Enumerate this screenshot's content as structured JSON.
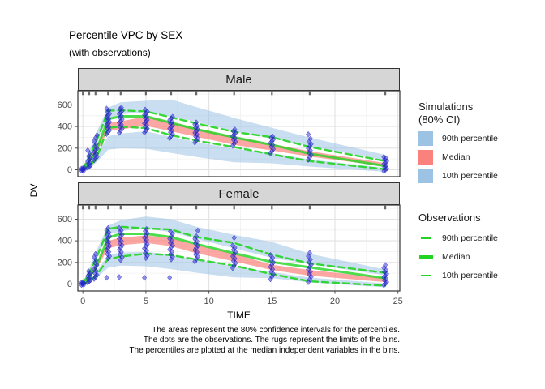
{
  "title": "Percentile VPC by SEX",
  "subtitle": "(with observations)",
  "caption_lines": [
    "The areas represent the 80% confidence intervals for the percentiles.",
    "The dots are the observations. The rugs represent the limits of the bins.",
    "The percentiles are plotted at the median independent variables in the bins."
  ],
  "axes": {
    "x_label": "TIME",
    "y_label": "DV"
  },
  "legend": {
    "simulations": {
      "title_line1": "Simulations",
      "title_line2": "(80% CI)",
      "items": [
        {
          "label": "90th percentile",
          "color": "#9dc3e4"
        },
        {
          "label": "Median",
          "color": "#fb817c"
        },
        {
          "label": "10th percentile",
          "color": "#9dc3e4"
        }
      ]
    },
    "observations": {
      "title": "Observations",
      "color": "#22d422",
      "items": [
        {
          "label": "90th percentile",
          "style": "dashed"
        },
        {
          "label": "Median",
          "style": "solid"
        },
        {
          "label": "10th percentile",
          "style": "dashed"
        }
      ]
    }
  },
  "colors": {
    "sim_ci_blue": "#9dc3e4",
    "sim_ci_red": "#fb817c",
    "obs_green": "#22d422",
    "points_blue": "#2323cc",
    "strip_bg": "#d6d6d6",
    "grid_major": "#e2e2e2",
    "grid_minor": "#f0f0f0",
    "panel_border": "#333333",
    "axis_text": "#4d4d4d",
    "rug": "#454545"
  },
  "chart_data": {
    "type": "area",
    "title": "Percentile VPC by SEX",
    "xlabel": "TIME",
    "ylabel": "DV",
    "x_ticks": [
      0,
      5,
      10,
      15,
      20,
      25
    ],
    "y_ticks": [
      0,
      200,
      400,
      600
    ],
    "x_minor": [
      2.5,
      7.5,
      12.5,
      17.5,
      22.5
    ],
    "y_minor": [
      100,
      300,
      500,
      700
    ],
    "xlim": [
      -0.4,
      25.15
    ],
    "ylim": [
      -64,
      731
    ],
    "legend_position": "right",
    "grid": true,
    "bin_times": [
      0,
      0.5,
      1,
      2,
      3,
      5,
      7,
      9,
      12,
      15,
      18,
      24
    ],
    "facets": [
      {
        "name": "Male",
        "sim_p90_ci": {
          "hi": [
            15,
            170,
            330,
            575,
            625,
            638,
            650,
            580,
            480,
            388,
            298,
            138
          ],
          "lo": [
            5,
            120,
            250,
            474,
            511,
            536,
            493,
            444,
            356,
            290,
            218,
            88
          ]
        },
        "sim_median_ci": {
          "hi": [
            8,
            100,
            200,
            437,
            449,
            493,
            444,
            381,
            306,
            238,
            172,
            62
          ],
          "lo": [
            2,
            70,
            150,
            362,
            374,
            406,
            356,
            306,
            231,
            178,
            122,
            32
          ]
        },
        "sim_p10_ci": {
          "hi": [
            2,
            55,
            120,
            311,
            336,
            356,
            306,
            256,
            194,
            155,
            96,
            18
          ],
          "lo": [
            0,
            25,
            60,
            186,
            199,
            194,
            156,
            118,
            69,
            60,
            30,
            -19
          ]
        },
        "obs_p90": [
          5,
          120,
          240,
          547,
          550,
          540,
          485,
          430,
          350,
          301,
          211,
          80
        ],
        "obs_median": [
          0,
          75,
          160,
          470,
          495,
          495,
          435,
          375,
          300,
          231,
          148,
          34
        ],
        "obs_p10": [
          0,
          35,
          90,
          388,
          398,
          385,
          320,
          270,
          210,
          142,
          80,
          4
        ],
        "points": [
          {
            "t": 0,
            "values": [
              -8,
              -3,
              0,
              3,
              6,
              10,
              14,
              18
            ]
          },
          {
            "t": 0.5,
            "values": [
              18,
              30,
              42,
              55,
              66,
              78,
              92,
              108,
              126,
              150,
              180
            ]
          },
          {
            "t": 1,
            "values": [
              88,
              105,
              120,
              135,
              150,
              165,
              180,
              198,
              218,
              240,
              265,
              295,
              320
            ]
          },
          {
            "t": 2,
            "values": [
              332,
              350,
              366,
              382,
              397,
              412,
              427,
              442,
              457,
              472,
              487,
              502,
              518,
              534,
              550,
              566
            ]
          },
          {
            "t": 3,
            "values": [
              342,
              362,
              381,
              399,
              417,
              434,
              450,
              466,
              482,
              498,
              514,
              530,
              546,
              562,
              576
            ]
          },
          {
            "t": 5,
            "values": [
              345,
              363,
              381,
              398,
              414,
              430,
              446,
              462,
              477,
              492,
              507,
              522,
              538,
              556
            ]
          },
          {
            "t": 7,
            "values": [
              292,
              312,
              330,
              348,
              364,
              380,
              396,
              412,
              428,
              444,
              460,
              476,
              490
            ]
          },
          {
            "t": 9,
            "values": [
              252,
              272,
              291,
              309,
              326,
              342,
              358,
              374,
              390,
              406,
              422,
              438
            ]
          },
          {
            "t": 12,
            "values": [
              222,
              242,
              260,
              277,
              294,
              310,
              326,
              342,
              358,
              372
            ]
          },
          {
            "t": 15,
            "values": [
              152,
              172,
              192,
              212,
              230,
              247,
              264,
              280,
              296,
              308
            ]
          },
          {
            "t": 18,
            "values": [
              92,
              115,
              137,
              158,
              178,
              198,
              218,
              238,
              258,
              288,
              328
            ]
          },
          {
            "t": 24,
            "values": [
              -12,
              0,
              12,
              25,
              38,
              52,
              66,
              80,
              94,
              106,
              118
            ]
          }
        ]
      },
      {
        "name": "Female",
        "sim_p90_ci": {
          "hi": [
            15,
            140,
            290,
            540,
            590,
            625,
            600,
            530,
            455,
            390,
            280,
            135
          ],
          "lo": [
            5,
            100,
            220,
            455,
            490,
            515,
            480,
            420,
            330,
            242,
            185,
            80
          ]
        },
        "sim_median_ci": {
          "hi": [
            8,
            85,
            175,
            400,
            430,
            450,
            425,
            360,
            280,
            178,
            130,
            55
          ],
          "lo": [
            2,
            55,
            125,
            330,
            360,
            380,
            350,
            285,
            210,
            129,
            78,
            18
          ]
        },
        "sim_p10_ci": {
          "hi": [
            2,
            45,
            100,
            270,
            290,
            300,
            272,
            225,
            165,
            110,
            60,
            5
          ],
          "lo": [
            0,
            20,
            50,
            150,
            170,
            165,
            138,
            105,
            62,
            54,
            15,
            -30
          ]
        },
        "obs_p90": [
          5,
          100,
          220,
          510,
          530,
          515,
          505,
          435,
          380,
          271,
          191,
          104
        ],
        "obs_median": [
          0,
          65,
          140,
          430,
          465,
          465,
          435,
          370,
          285,
          204,
          154,
          54
        ],
        "obs_p10": [
          0,
          25,
          70,
          230,
          255,
          280,
          268,
          228,
          170,
          91,
          25,
          -15
        ],
        "points": [
          {
            "t": 0,
            "values": [
              -8,
              -3,
              0,
              4,
              8,
              12,
              17
            ]
          },
          {
            "t": 0.5,
            "values": [
              14,
              26,
              38,
              50,
              62,
              75,
              88,
              102,
              118
            ]
          },
          {
            "t": 1,
            "values": [
              48,
              66,
              84,
              102,
              120,
              138,
              157,
              177,
              198,
              222,
              248,
              278
            ]
          },
          {
            "t": 2,
            "values": [
              58,
              238,
              258,
              278,
              297,
              316,
              334,
              352,
              370,
              388,
              406,
              424,
              442,
              460,
              478,
              498,
              518
            ]
          },
          {
            "t": 3,
            "values": [
              64,
              222,
              248,
              272,
              295,
              317,
              338,
              358,
              378,
              398,
              418,
              438,
              458,
              478,
              498,
              518
            ]
          },
          {
            "t": 5,
            "values": [
              58,
              240,
              263,
              286,
              308,
              329,
              349,
              369,
              389,
              409,
              429,
              449,
              469,
              489,
              509
            ]
          },
          {
            "t": 7,
            "values": [
              60,
              228,
              252,
              276,
              298,
              319,
              340,
              360,
              380,
              400,
              420,
              442,
              464,
              488
            ]
          },
          {
            "t": 9,
            "values": [
              208,
              232,
              254,
              275,
              295,
              315,
              335,
              355,
              375,
              395,
              418,
              442,
              495
            ]
          },
          {
            "t": 12,
            "values": [
              148,
              172,
              194,
              215,
              236,
              256,
              276,
              296,
              316,
              336,
              356,
              428
            ]
          },
          {
            "t": 15,
            "values": [
              44,
              68,
              92,
              115,
              137,
              158,
              179,
              200,
              221,
              243,
              268
            ]
          },
          {
            "t": 18,
            "values": [
              18,
              44,
              68,
              91,
              113,
              135,
              157,
              179,
              202,
              228,
              258,
              288
            ]
          },
          {
            "t": 24,
            "values": [
              -10,
              4,
              18,
              33,
              48,
              63,
              78,
              94,
              110,
              128,
              150,
              176
            ]
          }
        ]
      }
    ]
  }
}
